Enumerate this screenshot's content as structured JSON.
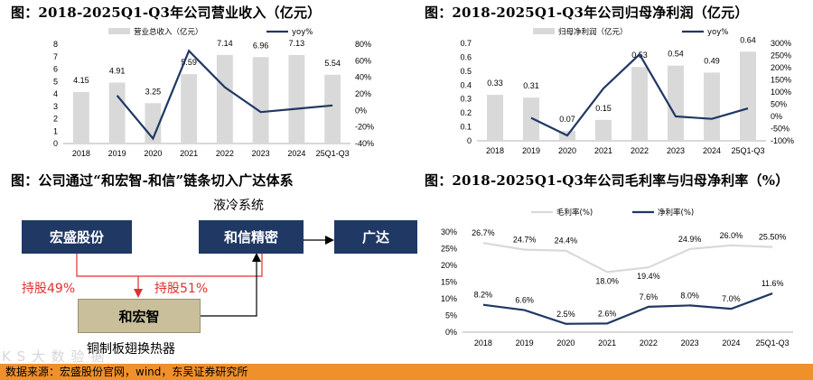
{
  "titles": {
    "revenue": "图：2018-2025Q1-Q3年公司营业收入（亿元）",
    "profit": "图：2018-2025Q1-Q3年公司归母净利润（亿元）",
    "diagram": "图：公司通过“和宏智-和信”链条切入广达体系",
    "margin": "图：2018-2025Q1-Q3年公司毛利率与归母净利率（%）"
  },
  "diagram": {
    "liquid_cooling": "液冷系统",
    "hongsheng": "宏盛股份",
    "hexin": "和信精密",
    "quanta": "广达",
    "hold49": "持股49%",
    "hold51": "持股51%",
    "hehongzhi": "和宏智",
    "copper": "铜制板翅换热器"
  },
  "footer": {
    "source": "数据来源：宏盛股份官网，wind，东吴证券研究所",
    "watermark": "K  S  大 数 验 据"
  },
  "colors": {
    "bar": "#d9d9d9",
    "line": "#1f3864",
    "line_light": "#d9d9d9",
    "navy": "#1f3864",
    "red": "#e03030"
  },
  "chart_data": [
    {
      "id": "revenue",
      "type": "bar",
      "title": "图：2018-2025Q1-Q3年公司营业收入（亿元）",
      "categories": [
        "2018",
        "2019",
        "2020",
        "2021",
        "2022",
        "2023",
        "2024",
        "25Q1-Q3"
      ],
      "series": [
        {
          "name": "营业总收入（亿元）",
          "type": "bar",
          "axis": "left",
          "values": [
            4.15,
            4.91,
            3.25,
            5.59,
            7.14,
            6.96,
            7.13,
            5.54
          ],
          "labels": [
            "4.15",
            "4.91",
            "3.25",
            "5.59",
            "7.14",
            "6.96",
            "7.13",
            "5.54"
          ]
        },
        {
          "name": "yoy%",
          "type": "line",
          "axis": "right",
          "values": [
            null,
            18,
            -34,
            72,
            28,
            -2,
            2,
            6
          ]
        }
      ],
      "left_ticks": [
        "0",
        "1",
        "2",
        "3",
        "4",
        "5",
        "6",
        "7",
        "8"
      ],
      "right_ticks": [
        "-40%",
        "-20%",
        "0%",
        "20%",
        "40%",
        "60%",
        "80%"
      ],
      "ylim_left": [
        0,
        8
      ],
      "ylim_right": [
        -40,
        80
      ]
    },
    {
      "id": "profit",
      "type": "bar",
      "title": "图：2018-2025Q1-Q3年公司归母净利润（亿元）",
      "categories": [
        "2018",
        "2019",
        "2020",
        "2021",
        "2022",
        "2023",
        "2024",
        "25Q1-Q3"
      ],
      "series": [
        {
          "name": "归母净利润（亿元）",
          "type": "bar",
          "axis": "left",
          "values": [
            0.33,
            0.31,
            0.07,
            0.15,
            0.53,
            0.54,
            0.49,
            0.64
          ],
          "labels": [
            "0.33",
            "0.31",
            "0.07",
            "0.15",
            "0.53",
            "0.54",
            "0.49",
            "0.64"
          ]
        },
        {
          "name": "yoy%",
          "type": "line",
          "axis": "right",
          "values": [
            null,
            -6,
            -78,
            115,
            255,
            0,
            -10,
            33
          ]
        }
      ],
      "left_ticks": [
        "0",
        "0.1",
        "0.2",
        "0.3",
        "0.4",
        "0.5",
        "0.6",
        "0.7"
      ],
      "right_ticks": [
        "-100%",
        "-50%",
        "0%",
        "50%",
        "100%",
        "150%",
        "200%",
        "250%",
        "300%"
      ],
      "ylim_left": [
        0,
        0.7
      ],
      "ylim_right": [
        -100,
        300
      ]
    },
    {
      "id": "margin",
      "type": "line",
      "title": "图：2018-2025Q1-Q3年公司毛利率与归母净利率（%）",
      "categories": [
        "2018",
        "2019",
        "2020",
        "2021",
        "2022",
        "2023",
        "2024",
        "25Q1-Q3"
      ],
      "series": [
        {
          "name": "毛利率(%)",
          "values": [
            26.7,
            24.7,
            24.4,
            18.0,
            19.4,
            24.9,
            26.0,
            25.5
          ],
          "labels": [
            "26.7%",
            "24.7%",
            "24.4%",
            "18.0%",
            "19.4%",
            "24.9%",
            "26.0%",
            "25.50%"
          ]
        },
        {
          "name": "净利率(%)",
          "values": [
            8.2,
            6.6,
            2.5,
            2.6,
            7.6,
            8.0,
            7.0,
            11.6
          ],
          "labels": [
            "8.2%",
            "6.6%",
            "2.5%",
            "2.6%",
            "7.6%",
            "8.0%",
            "7.0%",
            "11.6%"
          ]
        }
      ],
      "left_ticks": [
        "0%",
        "5%",
        "10%",
        "15%",
        "20%",
        "25%",
        "30%"
      ],
      "ylim": [
        0,
        30
      ]
    }
  ]
}
